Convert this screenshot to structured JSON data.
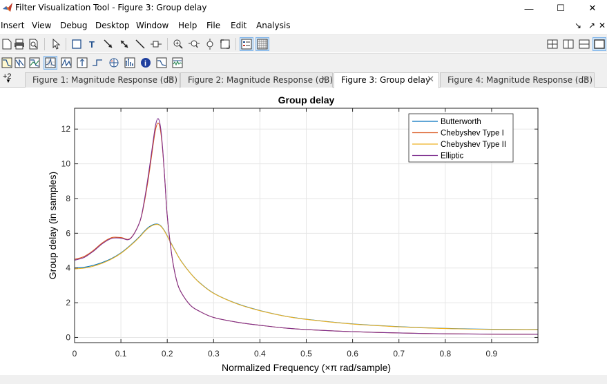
{
  "window": {
    "title": "Filter Visualization Tool - Figure 3: Group delay",
    "controls": {
      "minimize": "—",
      "maximize": "☐",
      "close": "✕"
    }
  },
  "menu": {
    "items": [
      "Insert",
      "View",
      "Debug",
      "Desktop",
      "Window",
      "Help",
      "File",
      "Edit",
      "Analysis"
    ],
    "dock_arrow": "↘",
    "undock_arrow": "↗",
    "close": "✕"
  },
  "tabs": {
    "overflow_label": "+2",
    "items": [
      {
        "label": "Figure 1: Magnitude Response (dB)",
        "active": false
      },
      {
        "label": "Figure 2: Magnitude Response (dB)",
        "active": false
      },
      {
        "label": "Figure 3: Group delay",
        "active": true
      },
      {
        "label": "Figure 4: Magnitude Response (dB)",
        "active": false
      }
    ],
    "close_glyph": "✕"
  },
  "colors": {
    "Butterworth": "#0072bd",
    "Chebyshev Type I": "#d95319",
    "Chebyshev Type II": "#edb120",
    "Elliptic": "#7e2f8e",
    "grid": "#e6e6e6",
    "axis": "#262626"
  },
  "chart_data": {
    "type": "line",
    "title": "Group delay",
    "xlabel": "Normalized Frequency (×π rad/sample)",
    "ylabel": "Group delay (in samples)",
    "xlim": [
      0,
      1
    ],
    "ylim": [
      -0.3,
      13.2
    ],
    "xticks": [
      0,
      0.1,
      0.2,
      0.3,
      0.4,
      0.5,
      0.6,
      0.7,
      0.8,
      0.9
    ],
    "xtick_labels": [
      "0",
      "0.1",
      "0.2",
      "0.3",
      "0.4",
      "0.5",
      "0.6",
      "0.7",
      "0.8",
      "0.9"
    ],
    "yticks": [
      0,
      2,
      4,
      6,
      8,
      10,
      12
    ],
    "ytick_labels": [
      "0",
      "2",
      "4",
      "6",
      "8",
      "10",
      "12"
    ],
    "grid": true,
    "legend_position": "top-right",
    "x": [
      0,
      0.02,
      0.04,
      0.06,
      0.08,
      0.1,
      0.12,
      0.14,
      0.15,
      0.16,
      0.17,
      0.175,
      0.18,
      0.185,
      0.19,
      0.195,
      0.2,
      0.21,
      0.22,
      0.23,
      0.25,
      0.27,
      0.3,
      0.35,
      0.4,
      0.45,
      0.5,
      0.6,
      0.7,
      0.8,
      0.9,
      1.0
    ],
    "series": [
      {
        "name": "Butterworth",
        "values": [
          4.0,
          4.04,
          4.15,
          4.32,
          4.55,
          4.87,
          5.3,
          5.8,
          6.1,
          6.35,
          6.5,
          6.53,
          6.52,
          6.45,
          6.3,
          6.1,
          5.85,
          5.35,
          4.85,
          4.4,
          3.7,
          3.15,
          2.55,
          1.95,
          1.55,
          1.25,
          1.05,
          0.78,
          0.62,
          0.52,
          0.47,
          0.45
        ]
      },
      {
        "name": "Chebyshev Type I",
        "values": [
          4.5,
          4.65,
          5.0,
          5.45,
          5.75,
          5.75,
          5.7,
          6.6,
          7.7,
          9.3,
          11.2,
          12.0,
          12.35,
          12.0,
          10.8,
          9.0,
          7.0,
          4.7,
          3.3,
          2.6,
          1.85,
          1.5,
          1.15,
          0.88,
          0.7,
          0.55,
          0.45,
          0.33,
          0.26,
          0.21,
          0.19,
          0.18
        ]
      },
      {
        "name": "Chebyshev Type II",
        "values": [
          3.95,
          3.99,
          4.1,
          4.28,
          4.52,
          4.84,
          5.27,
          5.77,
          6.07,
          6.32,
          6.47,
          6.5,
          6.5,
          6.43,
          6.28,
          6.08,
          5.83,
          5.33,
          4.84,
          4.39,
          3.69,
          3.14,
          2.54,
          1.94,
          1.54,
          1.24,
          1.04,
          0.77,
          0.61,
          0.51,
          0.46,
          0.44
        ]
      },
      {
        "name": "Elliptic",
        "values": [
          4.45,
          4.6,
          4.95,
          5.4,
          5.7,
          5.72,
          5.68,
          6.6,
          7.8,
          9.5,
          11.4,
          12.25,
          12.6,
          12.2,
          10.9,
          9.0,
          7.0,
          4.7,
          3.3,
          2.6,
          1.85,
          1.5,
          1.15,
          0.88,
          0.7,
          0.55,
          0.45,
          0.33,
          0.26,
          0.21,
          0.19,
          0.18
        ]
      }
    ]
  }
}
